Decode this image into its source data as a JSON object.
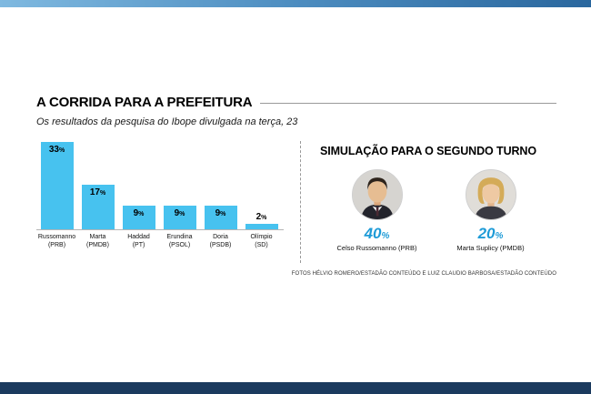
{
  "page": {
    "title": "A CORRIDA PARA A PREFEITURA",
    "subtitle": "Os resultados da pesquisa do Ibope divulgada na  terça, 23",
    "credits": "FOTOS HÉLVIO ROMERO/ESTADÃO CONTEÚDO E LUIZ CLAUDIO BARBOSA/ESTADÃO CONTEÚDO"
  },
  "chart_data": {
    "type": "bar",
    "title": "A CORRIDA PARA A PREFEITURA",
    "categories": [
      "Russomanno",
      "Marta",
      "Haddad",
      "Erundina",
      "Doria",
      "Olímpio"
    ],
    "parties": [
      "(PRB)",
      "(PMDB)",
      "(PT)",
      "(PSOL)",
      "(PSDB)",
      "(SD)"
    ],
    "values": [
      33,
      17,
      9,
      9,
      9,
      2
    ],
    "unit": "%",
    "ylim": [
      0,
      35
    ],
    "bar_color": "#47c2ef",
    "legend": "none",
    "grid": false
  },
  "simulation": {
    "heading": "SIMULAÇÃO PARA O SEGUNDO TURNO",
    "candidates": [
      {
        "value": "40",
        "unit": "%",
        "name": "Celso Russomanno (PRB)"
      },
      {
        "value": "20",
        "unit": "%",
        "name": "Marta Suplicy (PMDB)"
      }
    ]
  },
  "colors": {
    "bar": "#47c2ef",
    "accent_blue": "#1e9bd7",
    "bottom_bar": "#1b3a5e"
  }
}
